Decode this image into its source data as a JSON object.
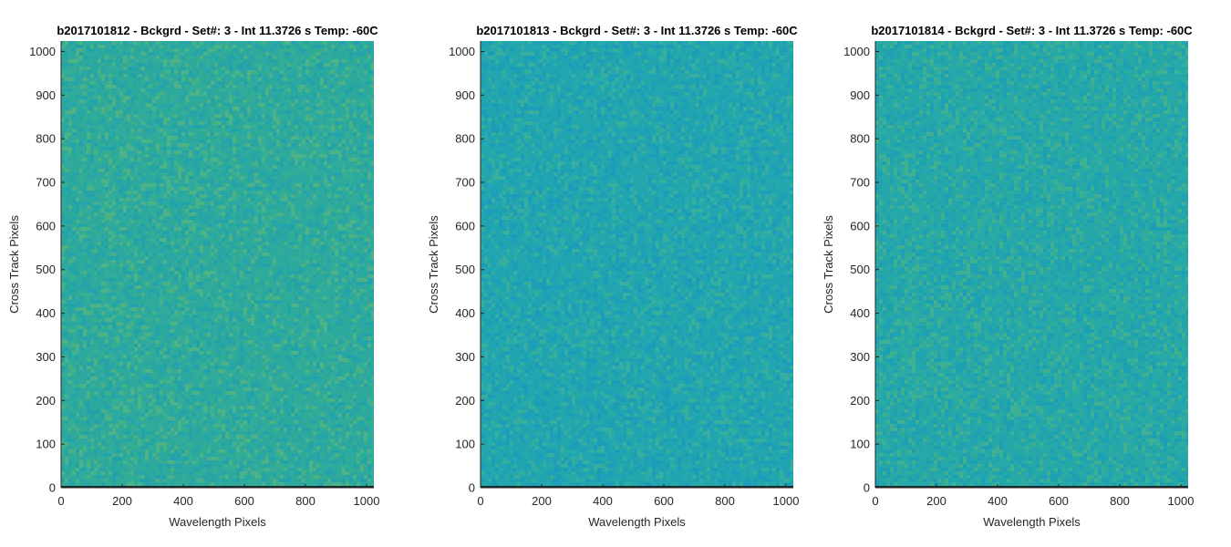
{
  "chart_data": [
    {
      "type": "heatmap",
      "title": "b2017101812 - Bckgrd - Set#: 3 - Int 11.3726 s Temp: -60C",
      "xlabel": "Wavelength Pixels",
      "ylabel": "Cross Track Pixels",
      "xlim": [
        0,
        1024
      ],
      "ylim": [
        0,
        1024
      ],
      "xticks": [
        0,
        200,
        400,
        600,
        800,
        1000
      ],
      "yticks": [
        0,
        100,
        200,
        300,
        400,
        500,
        600,
        700,
        800,
        900,
        1000
      ],
      "colormap": "parula",
      "base_color": "#2daa9c",
      "noise_colors": [
        "#26a4a8",
        "#3aaf92",
        "#58b57e",
        "#1f9fb0"
      ],
      "grid": false
    },
    {
      "type": "heatmap",
      "title": "b2017101813 - Bckgrd - Set#: 3 - Int 11.3726 s Temp: -60C",
      "xlabel": "Wavelength Pixels",
      "ylabel": "Cross Track Pixels",
      "xlim": [
        0,
        1024
      ],
      "ylim": [
        0,
        1024
      ],
      "xticks": [
        0,
        200,
        400,
        600,
        800,
        1000
      ],
      "yticks": [
        0,
        100,
        200,
        300,
        400,
        500,
        600,
        700,
        800,
        900,
        1000
      ],
      "colormap": "parula",
      "base_color": "#21a6b0",
      "noise_colors": [
        "#1c9fb6",
        "#2aaba6",
        "#3fb196",
        "#1898bd"
      ],
      "grid": false
    },
    {
      "type": "heatmap",
      "title": "b2017101814 - Bckgrd - Set#: 3 - Int 11.3726 s Temp: -60C",
      "xlabel": "Wavelength Pixels",
      "ylabel": "Cross Track Pixels",
      "xlim": [
        0,
        1024
      ],
      "ylim": [
        0,
        1024
      ],
      "xticks": [
        0,
        200,
        400,
        600,
        800,
        1000
      ],
      "yticks": [
        0,
        100,
        200,
        300,
        400,
        500,
        600,
        700,
        800,
        900,
        1000
      ],
      "colormap": "parula",
      "base_color": "#27a8a8",
      "noise_colors": [
        "#20a0b2",
        "#32ad9c",
        "#48b38a",
        "#1b9cb8"
      ],
      "grid": false
    }
  ]
}
